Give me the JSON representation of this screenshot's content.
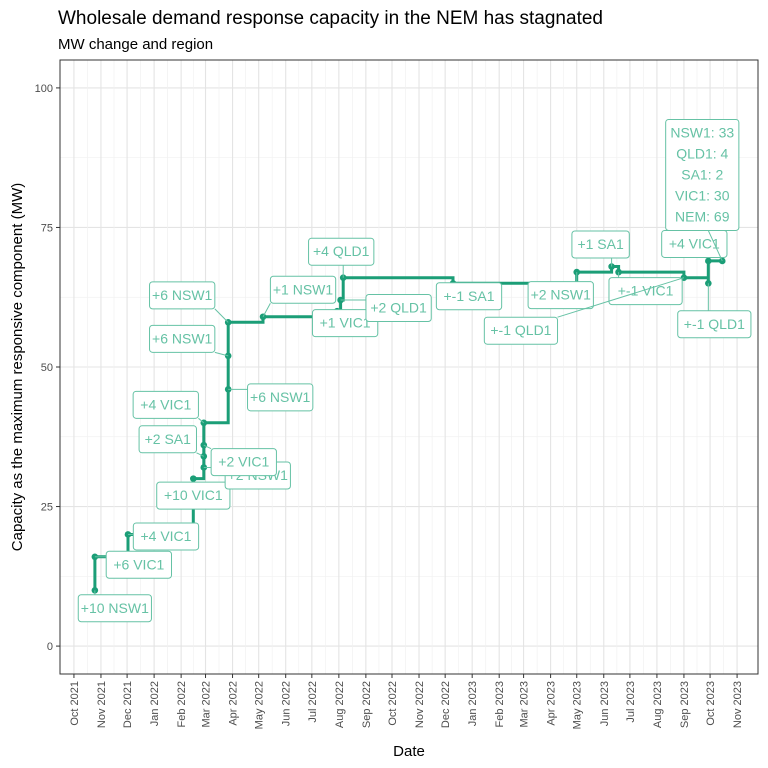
{
  "chart_data": {
    "type": "line",
    "title": "Wholesale demand response capacity in the NEM has stagnated",
    "subtitle": "MW change and region",
    "xlabel": "Date",
    "ylabel": "Capacity as the maximum responsive component (MW)",
    "xlim": [
      "2021-09-15",
      "2023-11-25"
    ],
    "ylim": [
      -5,
      105
    ],
    "grid": true,
    "line_color": "#1b9e77",
    "label_color": "#66c2a5",
    "y_ticks": [
      0,
      25,
      50,
      75,
      100
    ],
    "x_ticks": [
      {
        "date": "2021-10-01",
        "label": "Oct 2021"
      },
      {
        "date": "2021-11-01",
        "label": "Nov 2021"
      },
      {
        "date": "2021-12-01",
        "label": "Dec 2021"
      },
      {
        "date": "2022-01-01",
        "label": "Jan 2022"
      },
      {
        "date": "2022-02-01",
        "label": "Feb 2022"
      },
      {
        "date": "2022-03-01",
        "label": "Mar 2022"
      },
      {
        "date": "2022-04-01",
        "label": "Apr 2022"
      },
      {
        "date": "2022-05-01",
        "label": "May 2022"
      },
      {
        "date": "2022-06-01",
        "label": "Jun 2022"
      },
      {
        "date": "2022-07-01",
        "label": "Jul 2022"
      },
      {
        "date": "2022-08-01",
        "label": "Aug 2022"
      },
      {
        "date": "2022-09-01",
        "label": "Sep 2022"
      },
      {
        "date": "2022-10-01",
        "label": "Oct 2022"
      },
      {
        "date": "2022-11-01",
        "label": "Nov 2022"
      },
      {
        "date": "2022-12-01",
        "label": "Dec 2022"
      },
      {
        "date": "2023-01-01",
        "label": "Jan 2023"
      },
      {
        "date": "2023-02-01",
        "label": "Feb 2023"
      },
      {
        "date": "2023-03-01",
        "label": "Mar 2023"
      },
      {
        "date": "2023-04-01",
        "label": "Apr 2023"
      },
      {
        "date": "2023-05-01",
        "label": "May 2023"
      },
      {
        "date": "2023-06-01",
        "label": "Jun 2023"
      },
      {
        "date": "2023-07-01",
        "label": "Jul 2023"
      },
      {
        "date": "2023-08-01",
        "label": "Aug 2023"
      },
      {
        "date": "2023-09-01",
        "label": "Sep 2023"
      },
      {
        "date": "2023-10-01",
        "label": "Oct 2023"
      },
      {
        "date": "2023-11-01",
        "label": "Nov 2023"
      }
    ],
    "points": [
      {
        "date": "2021-10-25",
        "y": 10,
        "label": "+10 NSW1"
      },
      {
        "date": "2021-10-25",
        "y": 16,
        "label": "+6 VIC1"
      },
      {
        "date": "2021-12-02",
        "y": 20,
        "label": "+4 VIC1"
      },
      {
        "date": "2022-02-15",
        "y": 30,
        "label": "+10 VIC1"
      },
      {
        "date": "2022-02-27",
        "y": 32,
        "label": "+2 NSW1"
      },
      {
        "date": "2022-02-27",
        "y": 34,
        "label": "+2 SA1"
      },
      {
        "date": "2022-02-27",
        "y": 36,
        "label": "+2 VIC1"
      },
      {
        "date": "2022-02-27",
        "y": 40,
        "label": "+4 VIC1"
      },
      {
        "date": "2022-03-27",
        "y": 46,
        "label": "+6 NSW1"
      },
      {
        "date": "2022-03-27",
        "y": 52,
        "label": "+6 NSW1"
      },
      {
        "date": "2022-03-27",
        "y": 58,
        "label": "+6 NSW1"
      },
      {
        "date": "2022-05-06",
        "y": 59,
        "label": "+1 NSW1"
      },
      {
        "date": "2022-07-30",
        "y": 60,
        "label": "+1 VIC1"
      },
      {
        "date": "2022-08-03",
        "y": 62,
        "label": "+2 QLD1"
      },
      {
        "date": "2022-08-06",
        "y": 66,
        "label": "+4 QLD1"
      },
      {
        "date": "2022-12-10",
        "y": 65,
        "label": "+-1 SA1"
      },
      {
        "date": "2023-05-01",
        "y": 67,
        "label": "+2 NSW1"
      },
      {
        "date": "2023-06-10",
        "y": 68,
        "label": "+1 SA1"
      },
      {
        "date": "2023-06-18",
        "y": 67,
        "label": "+-1 VIC1"
      },
      {
        "date": "2023-09-01",
        "y": 66,
        "label": "+-1 QLD1"
      },
      {
        "date": "2023-09-29",
        "y": 65,
        "label": "+-1 QLD1"
      },
      {
        "date": "2023-09-29",
        "y": 69,
        "label": "+4 VIC1"
      },
      {
        "date": "2023-10-15",
        "y": 69,
        "label": ""
      }
    ],
    "summary_label": [
      "NSW1: 33",
      "QLD1:  4",
      "SA1:  2",
      "VIC1: 30",
      "NEM: 69"
    ]
  }
}
